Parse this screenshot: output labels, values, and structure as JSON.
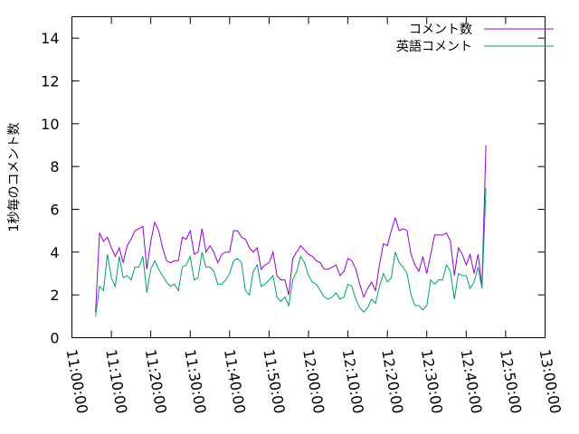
{
  "chart_data": {
    "type": "line",
    "title": "",
    "xlabel": "",
    "ylabel": "1秒毎のコメント数",
    "ylim": [
      0,
      15
    ],
    "xlim": [
      "11:00:00",
      "13:00:00"
    ],
    "y_ticks": [
      "0",
      "2",
      "4",
      "6",
      "8",
      "10",
      "12",
      "14"
    ],
    "x_ticks": [
      "11:00:00",
      "11:10:00",
      "11:20:00",
      "11:30:00",
      "11:40:00",
      "11:50:00",
      "12:00:00",
      "12:10:00",
      "12:20:00",
      "12:30:00",
      "12:40:00",
      "12:50:00",
      "13:00:00"
    ],
    "grid": false,
    "legend_position": "top-right",
    "x_start": "11:06:00",
    "x_step": "1:00",
    "series": [
      {
        "name": "コメント数",
        "color": "#9400d3",
        "values": [
          1.2,
          4.9,
          4.5,
          4.7,
          4.2,
          3.8,
          4.2,
          3.5,
          4.3,
          4.6,
          5.0,
          5.1,
          5.2,
          3.2,
          4.5,
          5.4,
          5.0,
          4.2,
          3.6,
          3.5,
          3.6,
          3.6,
          4.7,
          4.6,
          5.0,
          3.9,
          4.0,
          5.1,
          4.0,
          4.3,
          4.0,
          3.5,
          3.9,
          4.0,
          4.0,
          5.0,
          5.0,
          4.7,
          4.6,
          4.2,
          4.0,
          4.2,
          3.2,
          3.4,
          3.5,
          4.0,
          2.9,
          2.7,
          2.7,
          2.0,
          3.7,
          4.0,
          4.3,
          4.1,
          3.9,
          3.8,
          3.6,
          3.5,
          3.2,
          3.2,
          3.3,
          3.4,
          2.9,
          3.1,
          3.7,
          3.6,
          3.2,
          2.5,
          1.9,
          2.3,
          2.6,
          2.2,
          3.4,
          4.4,
          4.3,
          5.0,
          5.6,
          5.0,
          5.1,
          5.0,
          3.9,
          3.4,
          3.1,
          3.8,
          3.0,
          3.9,
          4.8,
          4.8,
          4.8,
          4.9,
          4.5,
          2.9,
          4.2,
          3.9,
          3.4,
          3.9,
          3.0,
          3.9,
          2.4,
          9.0
        ]
      },
      {
        "name": "英語コメント",
        "color": "#009e73",
        "values": [
          1.0,
          2.4,
          2.2,
          3.9,
          2.8,
          2.4,
          3.8,
          2.8,
          2.9,
          2.7,
          3.3,
          3.3,
          3.8,
          2.1,
          3.2,
          3.6,
          3.2,
          2.9,
          2.6,
          2.4,
          2.5,
          2.2,
          3.3,
          3.4,
          3.8,
          2.7,
          2.8,
          4.0,
          3.3,
          3.3,
          3.1,
          2.5,
          2.5,
          2.7,
          3.0,
          3.6,
          3.7,
          3.5,
          2.2,
          2.0,
          3.1,
          3.4,
          2.4,
          2.5,
          2.7,
          2.9,
          1.9,
          1.7,
          1.9,
          1.5,
          2.7,
          3.1,
          3.8,
          3.5,
          2.9,
          2.6,
          2.5,
          2.2,
          1.9,
          1.8,
          1.9,
          2.1,
          1.8,
          1.9,
          2.5,
          2.4,
          1.8,
          1.4,
          1.2,
          1.4,
          1.8,
          1.6,
          2.4,
          3.0,
          2.6,
          2.8,
          4.0,
          3.5,
          3.3,
          3.0,
          2.0,
          1.5,
          1.5,
          1.3,
          1.5,
          2.7,
          2.5,
          2.7,
          2.7,
          3.4,
          3.1,
          1.8,
          3.0,
          2.9,
          2.9,
          2.3,
          2.6,
          3.3,
          2.3,
          7.0
        ]
      }
    ]
  }
}
